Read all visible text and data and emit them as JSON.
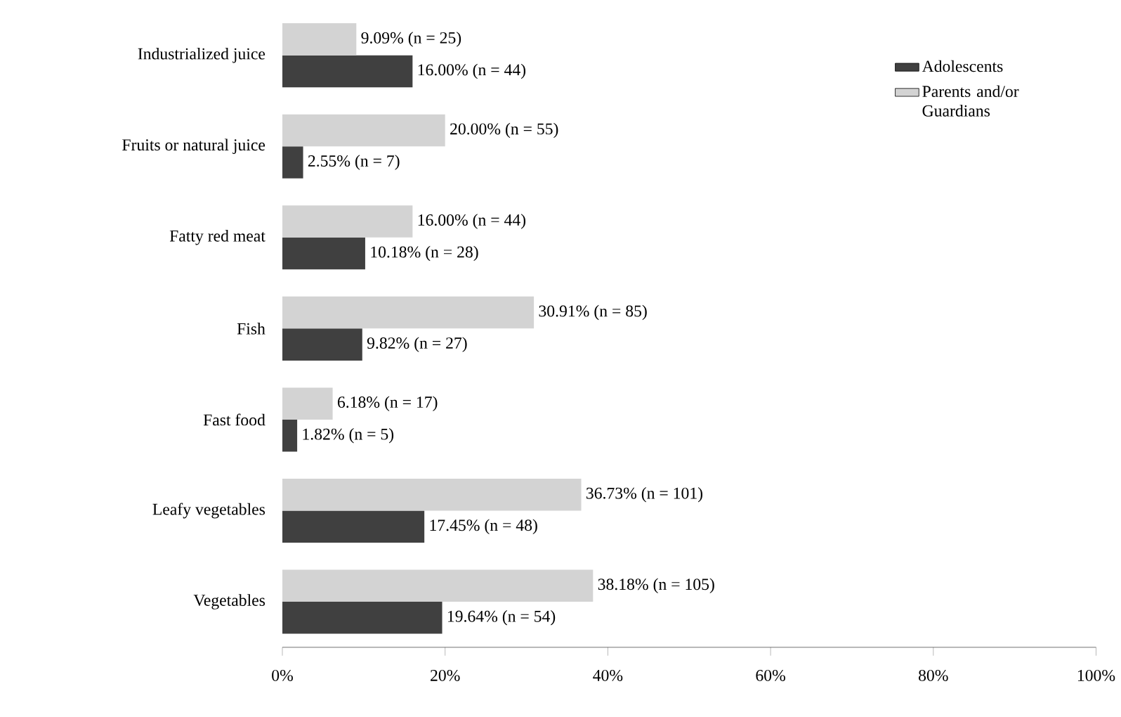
{
  "chart_data": {
    "type": "bar",
    "orientation": "horizontal",
    "categories": [
      "Industrialized juice",
      "Fruits or natural juice",
      "Fatty red meat",
      "Fish",
      "Fast food",
      "Leafy vegetables",
      "Vegetables"
    ],
    "series": [
      {
        "name": "Adolescents",
        "color": "#404040",
        "values": [
          16.0,
          2.55,
          10.18,
          9.82,
          1.82,
          17.45,
          19.64
        ],
        "value_labels": [
          "16.00% (n = 44)",
          "2.55% (n = 7)",
          "10.18% (n = 28)",
          "9.82% (n = 27)",
          "1.82% (n = 5)",
          "17.45% (n = 48)",
          "19.64% (n = 54)"
        ]
      },
      {
        "name": "Parents and/or Guardians",
        "color": "#d3d3d3",
        "values": [
          9.09,
          20.0,
          16.0,
          30.91,
          6.18,
          36.73,
          38.18
        ],
        "value_labels": [
          "9.09% (n = 25)",
          "20.00% (n = 55)",
          "16.00% (n = 44)",
          "30.91% (n = 85)",
          "6.18% (n = 17)",
          "36.73% (n = 101)",
          "38.18% (n = 105)"
        ]
      }
    ],
    "xlim": [
      0,
      100
    ],
    "xticks": [
      {
        "value": 0,
        "label": "0%"
      },
      {
        "value": 20,
        "label": "20%"
      },
      {
        "value": 40,
        "label": "40%"
      },
      {
        "value": 60,
        "label": "60%"
      },
      {
        "value": 80,
        "label": "80%"
      },
      {
        "value": 100,
        "label": "100%"
      }
    ],
    "legend": "top right",
    "grid": false
  }
}
